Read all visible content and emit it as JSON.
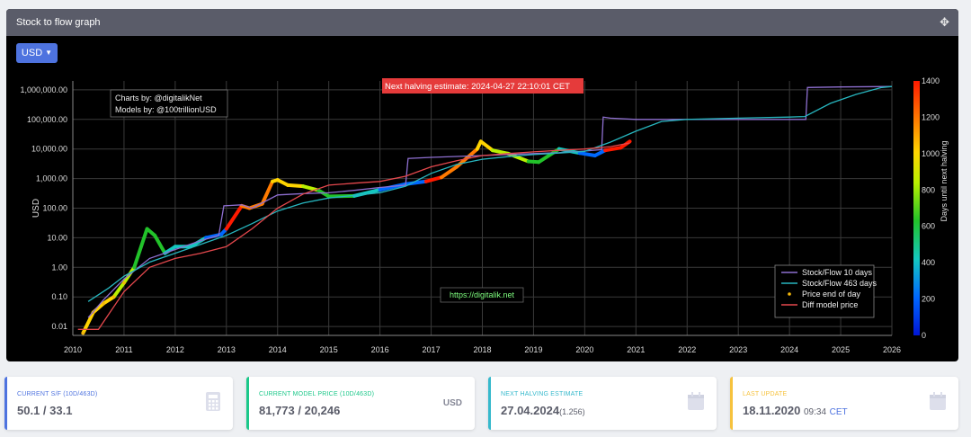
{
  "panel": {
    "title": "Stock to flow graph",
    "currency_button": "USD"
  },
  "chart_data": {
    "type": "line",
    "title": "",
    "xlabel": "",
    "ylabel": "USD",
    "yscale": "log",
    "ylim": [
      0.005,
      2000000
    ],
    "y_ticks": [
      0.01,
      0.1,
      1,
      10,
      100,
      1000,
      10000,
      100000,
      1000000
    ],
    "y_tick_labels": [
      "0.01",
      "0.10",
      "1.00",
      "10.00",
      "100.00",
      "1,000.00",
      "10,000.00",
      "100,000.00",
      "1,000,000.00"
    ],
    "xlim": [
      2010,
      2026
    ],
    "x_ticks": [
      2010,
      2011,
      2012,
      2013,
      2014,
      2015,
      2016,
      2017,
      2018,
      2019,
      2020,
      2021,
      2022,
      2023,
      2024,
      2025,
      2026
    ],
    "grid": true,
    "colorbar": {
      "label": "Days until next halving",
      "min": 0,
      "max": 1400,
      "ticks": [
        0,
        200,
        400,
        600,
        800,
        1000,
        1200,
        1400
      ]
    },
    "legend_position": "bottom-right",
    "series": [
      {
        "name": "Stock/Flow 10 days",
        "color": "#8e6fd0",
        "points": [
          [
            2010.3,
            0.02
          ],
          [
            2010.6,
            0.08
          ],
          [
            2011.0,
            0.4
          ],
          [
            2011.5,
            2
          ],
          [
            2012.0,
            4
          ],
          [
            2012.5,
            8
          ],
          [
            2012.85,
            12
          ],
          [
            2012.95,
            120
          ],
          [
            2013.3,
            130
          ],
          [
            2013.5,
            100
          ],
          [
            2014.0,
            280
          ],
          [
            2014.5,
            310
          ],
          [
            2015.0,
            330
          ],
          [
            2015.5,
            400
          ],
          [
            2016.0,
            500
          ],
          [
            2016.5,
            600
          ],
          [
            2016.55,
            4800
          ],
          [
            2017.0,
            5200
          ],
          [
            2017.5,
            5600
          ],
          [
            2018.0,
            6000
          ],
          [
            2018.5,
            6500
          ],
          [
            2019.0,
            7000
          ],
          [
            2019.5,
            7500
          ],
          [
            2020.0,
            8500
          ],
          [
            2020.33,
            9500
          ],
          [
            2020.36,
            120000
          ],
          [
            2020.5,
            110000
          ],
          [
            2021.0,
            100000
          ],
          [
            2022.0,
            100000
          ],
          [
            2023.0,
            100000
          ],
          [
            2024.0,
            100000
          ],
          [
            2024.32,
            100000
          ],
          [
            2024.35,
            1200000
          ],
          [
            2025.0,
            1250000
          ],
          [
            2026.0,
            1300000
          ]
        ]
      },
      {
        "name": "Stock/Flow 463 days",
        "color": "#27b6bf",
        "points": [
          [
            2010.3,
            0.07
          ],
          [
            2010.7,
            0.2
          ],
          [
            2011.0,
            0.5
          ],
          [
            2011.5,
            1.5
          ],
          [
            2012.0,
            3
          ],
          [
            2012.5,
            6
          ],
          [
            2013.0,
            12
          ],
          [
            2013.5,
            30
          ],
          [
            2014.0,
            80
          ],
          [
            2014.5,
            150
          ],
          [
            2015.0,
            220
          ],
          [
            2015.5,
            270
          ],
          [
            2016.0,
            330
          ],
          [
            2016.5,
            550
          ],
          [
            2017.0,
            1500
          ],
          [
            2017.5,
            3000
          ],
          [
            2018.0,
            4500
          ],
          [
            2018.5,
            5500
          ],
          [
            2019.0,
            6500
          ],
          [
            2019.5,
            7300
          ],
          [
            2020.0,
            8300
          ],
          [
            2020.5,
            17000
          ],
          [
            2021.0,
            40000
          ],
          [
            2021.5,
            85000
          ],
          [
            2022.0,
            100000
          ],
          [
            2023.0,
            110000
          ],
          [
            2024.0,
            120000
          ],
          [
            2024.3,
            125000
          ],
          [
            2024.8,
            350000
          ],
          [
            2025.3,
            700000
          ],
          [
            2025.8,
            1200000
          ],
          [
            2026.0,
            1300000
          ]
        ]
      },
      {
        "name": "Diff model price",
        "color": "#e5484d",
        "points": [
          [
            2010.1,
            0.008
          ],
          [
            2010.5,
            0.008
          ],
          [
            2011.0,
            0.15
          ],
          [
            2011.5,
            1
          ],
          [
            2012.0,
            2
          ],
          [
            2012.5,
            3
          ],
          [
            2013.0,
            5
          ],
          [
            2013.5,
            20
          ],
          [
            2014.0,
            100
          ],
          [
            2014.5,
            300
          ],
          [
            2015.0,
            600
          ],
          [
            2015.5,
            700
          ],
          [
            2016.0,
            800
          ],
          [
            2016.5,
            1200
          ],
          [
            2017.0,
            2500
          ],
          [
            2017.5,
            4000
          ],
          [
            2018.0,
            6000
          ],
          [
            2018.5,
            7000
          ],
          [
            2019.0,
            8000
          ],
          [
            2019.5,
            9000
          ],
          [
            2020.0,
            10000
          ],
          [
            2020.5,
            12000
          ],
          [
            2020.88,
            16000
          ]
        ]
      },
      {
        "name": "Price end of day",
        "color": "#f5b70a",
        "points": [
          [
            2010.2,
            0.006
          ],
          [
            2010.4,
            0.03
          ],
          [
            2010.6,
            0.06
          ],
          [
            2010.8,
            0.1
          ],
          [
            2011.0,
            0.3
          ],
          [
            2011.2,
            1
          ],
          [
            2011.45,
            20
          ],
          [
            2011.6,
            12
          ],
          [
            2011.8,
            3
          ],
          [
            2012.0,
            5
          ],
          [
            2012.3,
            5
          ],
          [
            2012.6,
            10
          ],
          [
            2012.9,
            13
          ],
          [
            2013.0,
            20
          ],
          [
            2013.3,
            120
          ],
          [
            2013.45,
            100
          ],
          [
            2013.7,
            140
          ],
          [
            2013.9,
            800
          ],
          [
            2014.0,
            900
          ],
          [
            2014.2,
            600
          ],
          [
            2014.5,
            550
          ],
          [
            2014.8,
            400
          ],
          [
            2015.0,
            250
          ],
          [
            2015.5,
            260
          ],
          [
            2016.0,
            420
          ],
          [
            2016.5,
            650
          ],
          [
            2016.9,
            800
          ],
          [
            2017.2,
            1100
          ],
          [
            2017.5,
            2500
          ],
          [
            2017.9,
            10000
          ],
          [
            2017.97,
            18000
          ],
          [
            2018.2,
            9000
          ],
          [
            2018.5,
            7000
          ],
          [
            2018.9,
            3800
          ],
          [
            2019.1,
            3600
          ],
          [
            2019.5,
            10000
          ],
          [
            2019.9,
            7300
          ],
          [
            2020.2,
            6000
          ],
          [
            2020.4,
            9000
          ],
          [
            2020.7,
            11000
          ],
          [
            2020.88,
            18000
          ]
        ]
      }
    ],
    "annotations": {
      "halving_banner": "Next halving estimate: 2024-04-27 22:10:01 CET",
      "credit_line1": "Charts by: @digitalikNet",
      "credit_line2": "Models by: @100trillionUSD",
      "watermark": "https://digitalik.net"
    }
  },
  "cards": [
    {
      "label": "CURRENT S/F (10D/463D)",
      "value": "50.1 / 33.1",
      "accent": "#4e73df",
      "icon": "calculator-icon"
    },
    {
      "label": "CURRENT MODEL PRICE (10D/463D)",
      "value": "81,773 / 20,246",
      "unit": "USD",
      "accent": "#1cc88a"
    },
    {
      "label": "NEXT HALVING ESTIMATE",
      "value": "27.04.2024",
      "value_suffix": "(1.256)",
      "accent": "#36b9cc",
      "icon": "calendar-icon"
    },
    {
      "label": "LAST UPDATE",
      "value": "18.11.2020",
      "time": "09:34",
      "tz": "CET",
      "accent": "#f6c23e",
      "icon": "calendar-icon"
    }
  ]
}
